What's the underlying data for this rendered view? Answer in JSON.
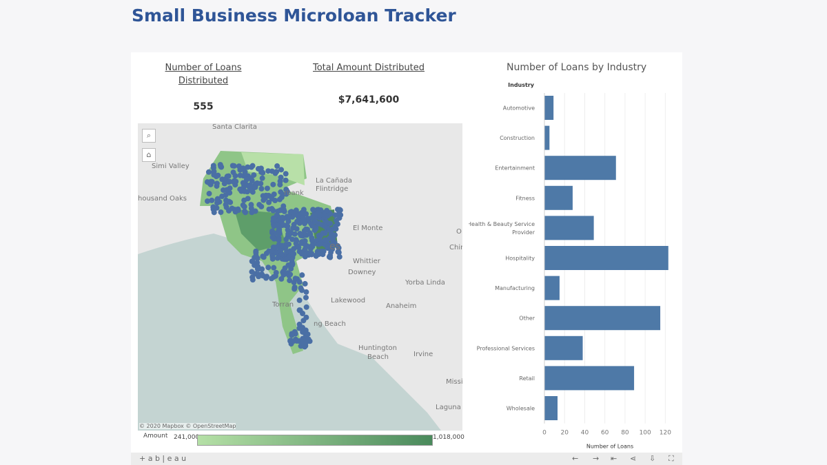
{
  "title": "Small Business Microloan Tracker",
  "kpis": {
    "loans_label_1": "Number of Loans",
    "loans_label_2": "Distributed",
    "loans_value": "555",
    "amount_label": "Total Amount Distributed",
    "amount_value": "$7,641,600"
  },
  "map": {
    "labels": [
      "Santa Clarita",
      "Simi Valley",
      "housand Oaks",
      "La Cañada",
      "Flintridge",
      "rbank",
      "El Monte",
      "es",
      "Chin",
      "Whittier",
      "Downey",
      "Yorba Linda",
      "Torran",
      "Lakewood",
      "Anaheim",
      "ng Beach",
      "Huntington",
      "Beach",
      "Irvine",
      "Missi",
      "Laguna Nig",
      "O"
    ],
    "attribution": "© 2020 Mapbox © OpenStreetMap",
    "search_icon": "search-icon",
    "home_icon": "home-icon",
    "legend": {
      "title": "Amount",
      "min": "241,000",
      "max": "1,018,000",
      "color_low": "#b5e0a6",
      "color_high": "#4a8a5c"
    },
    "dot_color": "#4a6fa5"
  },
  "chart_data": {
    "type": "bar",
    "title": "Number of Loans by Industry",
    "ylabel": "Industry",
    "xlabel": "Number of Loans",
    "categories": [
      "Automotive",
      "Construction",
      "Entertainment",
      "Fitness",
      "Health & Beauty Service Provider",
      "Hospitality",
      "Manufacturing",
      "Other",
      "Professional Services",
      "Retail",
      "Wholesale"
    ],
    "values": [
      9,
      5,
      71,
      28,
      49,
      123,
      15,
      115,
      38,
      89,
      13
    ],
    "xlim": [
      0,
      130
    ],
    "ticks": [
      "0",
      "20",
      "40",
      "60",
      "80",
      "100",
      "120"
    ],
    "grid": true,
    "color": "#4e79a7"
  },
  "footer": {
    "brand": "+ a b | e a u",
    "icons": [
      "back-icon",
      "forward-icon",
      "revert-icon",
      "share-icon",
      "download-icon",
      "fullscreen-icon"
    ],
    "glyphs": [
      "←",
      "→",
      "⇤",
      "⋖",
      "⇩",
      "⛶"
    ]
  }
}
